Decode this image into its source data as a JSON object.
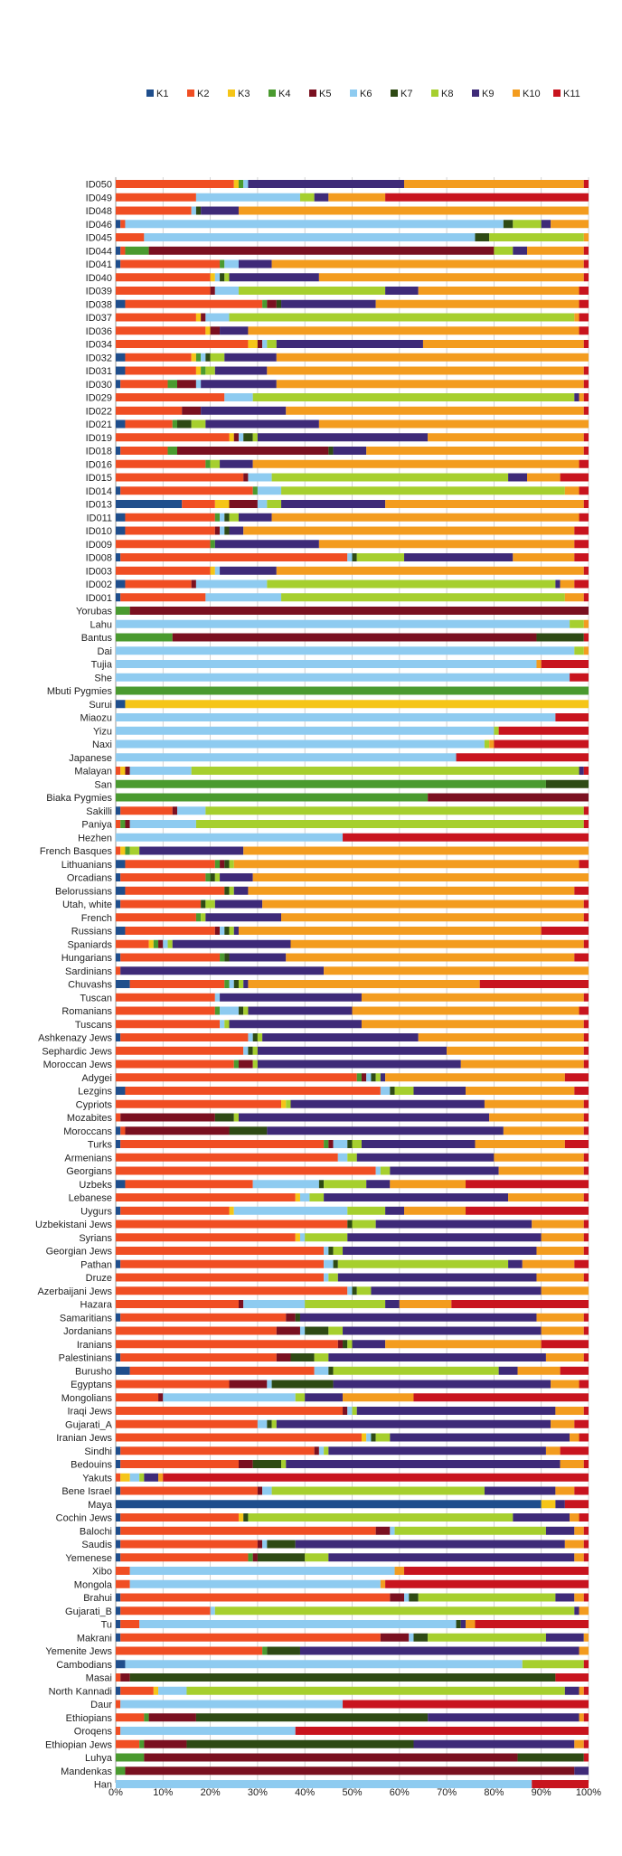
{
  "colors": [
    "#1f4e8c",
    "#f04e23",
    "#f5c518",
    "#4a9a2f",
    "#7a1020",
    "#8ecbf0",
    "#2e4a14",
    "#a6cf2e",
    "#3e2a78",
    "#f39c1f",
    "#c8141e"
  ],
  "chart_data": {
    "type": "bar",
    "orientation": "horizontal",
    "stacked": true,
    "percent": true,
    "xlim": [
      0,
      100
    ],
    "x_ticks": [
      "0%",
      "10%",
      "20%",
      "30%",
      "40%",
      "50%",
      "60%",
      "70%",
      "80%",
      "90%",
      "100%"
    ],
    "grid": true,
    "legend_position": "top",
    "series_names": [
      "K1",
      "K2",
      "K3",
      "K4",
      "K5",
      "K6",
      "K7",
      "K8",
      "K9",
      "K10",
      "K11"
    ],
    "categories": [
      "ID050",
      "ID049",
      "ID048",
      "ID046",
      "ID045",
      "ID044",
      "ID041",
      "ID040",
      "ID039",
      "ID038",
      "ID037",
      "ID036",
      "ID034",
      "ID032",
      "ID031",
      "ID030",
      "ID029",
      "ID022",
      "ID021",
      "ID019",
      "ID018",
      "ID016",
      "ID015",
      "ID014",
      "ID013",
      "ID011",
      "ID010",
      "ID009",
      "ID008",
      "ID003",
      "ID002",
      "ID001",
      "Yorubas",
      "Lahu",
      "Bantus",
      "Dai",
      "Tujia",
      "She",
      "Mbuti Pygmies",
      "Surui",
      "Miaozu",
      "Yizu",
      "Naxi",
      "Japanese",
      "Malayan",
      "San",
      "Biaka Pygmies",
      "Sakilli",
      "Paniya",
      "Hezhen",
      "French Basques",
      "Lithuanians",
      "Orcadians",
      "Belorussians",
      "Utah, white",
      "French",
      "Russians",
      "Spaniards",
      "Hungarians",
      "Sardinians",
      "Chuvashs",
      "Tuscan",
      "Romanians",
      "Tuscans",
      "Ashkenazy Jews",
      "Sephardic Jews",
      "Moroccan Jews",
      "Adygei",
      "Lezgins",
      "Cypriots",
      "Mozabites",
      "Moroccans",
      "Turks",
      "Armenians",
      "Georgians",
      "Uzbeks",
      "Lebanese",
      "Uygurs",
      "Uzbekistani Jews",
      "Syrians",
      "Georgian Jews",
      "Pathan",
      "Druze",
      "Azerbaijani Jews",
      "Hazara",
      "Samaritians",
      "Jordanians",
      "Iranians",
      "Palestinians",
      "Burusho",
      "Egyptans",
      "Mongolians",
      "Iraqi Jews",
      "Gujarati_A",
      "Iranian Jews",
      "Sindhi",
      "Bedouins",
      "Yakuts",
      "Bene Israel",
      "Maya",
      "Cochin Jews",
      "Balochi",
      "Saudis",
      "Yemenese",
      "Xibo",
      "Mongola",
      "Brahui",
      "Gujarati_B",
      "Tu",
      "Makrani",
      "Yemenite Jews",
      "Cambodians",
      "Masai",
      "North Kannadi",
      "Daur",
      "Ethiopians",
      "Oroqens",
      "Ethiopian Jews",
      "Luhya",
      "Mandenkas",
      "Han"
    ],
    "values": [
      [
        0,
        25,
        1,
        1,
        0,
        1,
        0,
        0,
        33,
        38,
        1
      ],
      [
        0,
        17,
        0,
        0,
        0,
        22,
        0,
        3,
        3,
        12,
        43
      ],
      [
        0,
        16,
        0,
        0,
        0,
        1,
        1,
        0,
        8,
        74,
        0
      ],
      [
        1,
        1,
        0,
        0,
        0,
        80,
        2,
        6,
        2,
        8,
        0
      ],
      [
        0,
        6,
        0,
        0,
        0,
        70,
        3,
        20,
        0,
        1,
        0
      ],
      [
        1,
        1,
        0,
        5,
        73,
        0,
        0,
        4,
        3,
        12,
        1
      ],
      [
        1,
        21,
        0,
        1,
        0,
        3,
        0,
        0,
        7,
        66,
        1
      ],
      [
        0,
        20,
        1,
        0,
        0,
        1,
        1,
        1,
        19,
        56,
        1
      ],
      [
        0,
        20,
        0,
        0,
        1,
        5,
        0,
        31,
        7,
        34,
        2
      ],
      [
        2,
        29,
        0,
        1,
        2,
        0,
        1,
        0,
        20,
        43,
        2
      ],
      [
        0,
        17,
        1,
        0,
        1,
        5,
        0,
        73,
        0,
        1,
        2
      ],
      [
        0,
        19,
        1,
        0,
        2,
        0,
        0,
        0,
        6,
        70,
        2
      ],
      [
        0,
        28,
        2,
        0,
        1,
        1,
        0,
        2,
        31,
        34,
        1
      ],
      [
        2,
        14,
        1,
        1,
        0,
        1,
        1,
        3,
        11,
        66,
        0
      ],
      [
        2,
        15,
        1,
        1,
        0,
        0,
        0,
        2,
        11,
        67,
        1
      ],
      [
        1,
        10,
        0,
        2,
        4,
        1,
        0,
        0,
        16,
        65,
        1
      ],
      [
        0,
        23,
        0,
        0,
        0,
        6,
        0,
        68,
        1,
        1,
        1
      ],
      [
        0,
        14,
        0,
        0,
        4,
        0,
        0,
        0,
        18,
        63,
        1
      ],
      [
        2,
        10,
        0,
        1,
        0,
        0,
        3,
        3,
        24,
        57,
        0
      ],
      [
        0,
        24,
        1,
        0,
        1,
        1,
        2,
        1,
        36,
        33,
        1
      ],
      [
        1,
        10,
        0,
        2,
        32,
        0,
        1,
        0,
        7,
        46,
        1
      ],
      [
        0,
        19,
        0,
        1,
        0,
        0,
        0,
        2,
        7,
        69,
        2
      ],
      [
        0,
        27,
        0,
        0,
        1,
        5,
        0,
        50,
        4,
        7,
        6
      ],
      [
        1,
        28,
        0,
        1,
        0,
        5,
        0,
        60,
        0,
        3,
        2
      ],
      [
        14,
        7,
        3,
        0,
        6,
        2,
        0,
        3,
        22,
        42,
        1
      ],
      [
        2,
        19,
        0,
        1,
        0,
        1,
        1,
        2,
        7,
        65,
        2
      ],
      [
        2,
        19,
        0,
        0,
        1,
        1,
        1,
        0,
        3,
        70,
        3
      ],
      [
        0,
        20,
        0,
        1,
        0,
        0,
        0,
        0,
        22,
        54,
        3
      ],
      [
        1,
        48,
        0,
        0,
        0,
        1,
        1,
        10,
        23,
        13,
        3
      ],
      [
        0,
        20,
        1,
        0,
        0,
        1,
        0,
        0,
        12,
        65,
        1
      ],
      [
        2,
        14,
        0,
        0,
        1,
        15,
        0,
        61,
        1,
        3,
        3
      ],
      [
        1,
        18,
        0,
        0,
        0,
        16,
        0,
        60,
        0,
        4,
        1
      ],
      [
        0,
        0,
        0,
        3,
        97,
        0,
        0,
        0,
        0,
        0,
        0
      ],
      [
        0,
        0,
        0,
        0,
        0,
        96,
        0,
        3,
        0,
        1,
        0
      ],
      [
        0,
        0,
        0,
        12,
        77,
        0,
        10,
        0,
        0,
        0,
        1
      ],
      [
        0,
        0,
        0,
        0,
        0,
        97,
        0,
        2,
        0,
        1,
        0
      ],
      [
        0,
        0,
        0,
        0,
        0,
        89,
        0,
        0,
        0,
        1,
        10
      ],
      [
        0,
        0,
        0,
        0,
        0,
        96,
        0,
        0,
        0,
        0,
        4
      ],
      [
        0,
        0,
        0,
        100,
        0,
        0,
        0,
        0,
        0,
        0,
        0
      ],
      [
        2,
        0,
        98,
        0,
        0,
        0,
        0,
        0,
        0,
        0,
        0
      ],
      [
        0,
        0,
        0,
        0,
        0,
        93,
        0,
        0,
        0,
        0,
        7
      ],
      [
        0,
        0,
        0,
        0,
        0,
        80,
        0,
        1,
        0,
        0,
        19
      ],
      [
        0,
        0,
        0,
        0,
        0,
        78,
        0,
        1,
        0,
        1,
        20
      ],
      [
        0,
        0,
        0,
        0,
        0,
        72,
        0,
        0,
        0,
        0,
        28
      ],
      [
        0,
        1,
        1,
        0,
        1,
        13,
        0,
        82,
        1,
        0,
        1
      ],
      [
        0,
        0,
        0,
        91,
        0,
        0,
        9,
        0,
        0,
        0,
        0
      ],
      [
        0,
        0,
        0,
        66,
        34,
        0,
        0,
        0,
        0,
        0,
        0
      ],
      [
        1,
        11,
        0,
        0,
        1,
        6,
        0,
        80,
        0,
        0,
        1
      ],
      [
        0,
        1,
        0,
        1,
        1,
        14,
        0,
        82,
        0,
        0,
        1
      ],
      [
        0,
        0,
        0,
        0,
        0,
        48,
        0,
        0,
        0,
        0,
        52
      ],
      [
        0,
        1,
        1,
        1,
        0,
        0,
        0,
        2,
        22,
        73,
        0
      ],
      [
        2,
        19,
        0,
        1,
        1,
        0,
        1,
        1,
        0,
        73,
        2
      ],
      [
        1,
        18,
        0,
        1,
        0,
        0,
        1,
        1,
        7,
        71,
        0
      ],
      [
        2,
        21,
        0,
        0,
        0,
        0,
        1,
        1,
        3,
        69,
        3
      ],
      [
        1,
        17,
        0,
        0,
        0,
        0,
        1,
        2,
        10,
        68,
        1
      ],
      [
        0,
        17,
        0,
        1,
        0,
        0,
        0,
        1,
        16,
        64,
        1
      ],
      [
        2,
        19,
        0,
        0,
        1,
        1,
        1,
        1,
        1,
        64,
        10
      ],
      [
        0,
        7,
        1,
        1,
        1,
        1,
        0,
        1,
        25,
        62,
        1
      ],
      [
        1,
        21,
        0,
        1,
        0,
        0,
        1,
        0,
        12,
        61,
        3
      ],
      [
        0,
        1,
        0,
        0,
        0,
        0,
        0,
        0,
        43,
        56,
        0
      ],
      [
        3,
        20,
        0,
        1,
        0,
        1,
        1,
        1,
        1,
        49,
        23
      ],
      [
        0,
        21,
        0,
        0,
        0,
        1,
        0,
        0,
        30,
        47,
        1
      ],
      [
        0,
        21,
        0,
        1,
        0,
        4,
        1,
        1,
        22,
        48,
        2
      ],
      [
        0,
        22,
        0,
        0,
        0,
        1,
        0,
        1,
        28,
        47,
        1
      ],
      [
        1,
        27,
        0,
        0,
        0,
        1,
        1,
        1,
        33,
        35,
        1
      ],
      [
        0,
        27,
        0,
        0,
        0,
        1,
        1,
        1,
        40,
        29,
        1
      ],
      [
        0,
        25,
        0,
        1,
        3,
        0,
        0,
        1,
        43,
        26,
        1
      ],
      [
        0,
        51,
        0,
        1,
        1,
        1,
        1,
        1,
        1,
        38,
        5
      ],
      [
        2,
        54,
        0,
        0,
        0,
        2,
        1,
        4,
        11,
        23,
        3
      ],
      [
        0,
        35,
        1,
        0,
        0,
        0,
        0,
        1,
        41,
        21,
        1
      ],
      [
        0,
        1,
        0,
        0,
        20,
        0,
        4,
        1,
        53,
        20,
        1
      ],
      [
        1,
        1,
        0,
        0,
        22,
        0,
        8,
        0,
        50,
        17,
        1
      ],
      [
        1,
        43,
        0,
        1,
        1,
        3,
        1,
        2,
        24,
        19,
        5
      ],
      [
        0,
        47,
        0,
        0,
        0,
        2,
        0,
        2,
        29,
        19,
        1
      ],
      [
        0,
        55,
        0,
        0,
        0,
        1,
        0,
        2,
        23,
        18,
        1
      ],
      [
        2,
        27,
        0,
        0,
        0,
        14,
        1,
        9,
        5,
        16,
        26
      ],
      [
        0,
        38,
        1,
        0,
        0,
        2,
        0,
        3,
        39,
        16,
        1
      ],
      [
        1,
        23,
        1,
        0,
        0,
        24,
        0,
        8,
        4,
        13,
        26
      ],
      [
        0,
        49,
        0,
        0,
        0,
        0,
        1,
        5,
        33,
        11,
        1
      ],
      [
        0,
        38,
        1,
        0,
        0,
        1,
        0,
        9,
        41,
        9,
        1
      ],
      [
        0,
        44,
        0,
        0,
        0,
        1,
        1,
        2,
        41,
        10,
        1
      ],
      [
        1,
        43,
        0,
        0,
        0,
        2,
        1,
        36,
        3,
        11,
        3
      ],
      [
        0,
        44,
        0,
        0,
        0,
        1,
        0,
        2,
        42,
        10,
        1
      ],
      [
        0,
        49,
        0,
        0,
        0,
        1,
        1,
        3,
        36,
        10,
        0
      ],
      [
        0,
        26,
        0,
        0,
        1,
        13,
        0,
        17,
        3,
        11,
        29
      ],
      [
        1,
        35,
        0,
        0,
        2,
        0,
        1,
        0,
        50,
        10,
        1
      ],
      [
        0,
        34,
        0,
        0,
        5,
        1,
        5,
        3,
        42,
        9,
        1
      ],
      [
        0,
        47,
        0,
        0,
        1,
        0,
        1,
        1,
        7,
        33,
        10
      ],
      [
        1,
        33,
        0,
        0,
        3,
        0,
        5,
        3,
        46,
        8,
        1
      ],
      [
        3,
        39,
        0,
        0,
        0,
        3,
        1,
        35,
        4,
        9,
        6
      ],
      [
        0,
        24,
        0,
        0,
        8,
        1,
        13,
        0,
        46,
        6,
        2
      ],
      [
        0,
        9,
        0,
        0,
        1,
        28,
        0,
        2,
        8,
        15,
        37
      ],
      [
        0,
        48,
        0,
        0,
        1,
        1,
        0,
        1,
        42,
        6,
        1
      ],
      [
        0,
        30,
        0,
        0,
        0,
        2,
        1,
        1,
        58,
        5,
        3
      ],
      [
        0,
        52,
        1,
        0,
        0,
        1,
        1,
        3,
        38,
        2,
        2
      ],
      [
        1,
        41,
        0,
        0,
        1,
        1,
        0,
        1,
        46,
        3,
        6
      ],
      [
        1,
        25,
        0,
        0,
        3,
        0,
        6,
        1,
        58,
        5,
        1
      ],
      [
        0,
        1,
        2,
        0,
        0,
        2,
        0,
        1,
        3,
        1,
        90
      ],
      [
        1,
        29,
        0,
        0,
        1,
        2,
        0,
        45,
        15,
        4,
        3
      ],
      [
        90,
        0,
        3,
        0,
        0,
        0,
        0,
        0,
        2,
        0,
        5
      ],
      [
        1,
        25,
        1,
        0,
        0,
        0,
        1,
        56,
        12,
        2,
        2
      ],
      [
        1,
        54,
        0,
        0,
        3,
        1,
        0,
        32,
        6,
        2,
        1
      ],
      [
        1,
        29,
        0,
        0,
        1,
        1,
        6,
        0,
        57,
        4,
        1
      ],
      [
        1,
        27,
        0,
        1,
        1,
        0,
        10,
        5,
        52,
        2,
        1
      ],
      [
        0,
        3,
        0,
        0,
        0,
        56,
        0,
        0,
        0,
        2,
        39
      ],
      [
        0,
        3,
        0,
        0,
        0,
        53,
        0,
        0,
        0,
        1,
        43
      ],
      [
        1,
        57,
        0,
        0,
        3,
        1,
        2,
        29,
        4,
        2,
        1
      ],
      [
        1,
        19,
        0,
        0,
        0,
        1,
        0,
        76,
        1,
        2,
        0
      ],
      [
        1,
        4,
        0,
        0,
        0,
        67,
        1,
        0,
        1,
        2,
        24
      ],
      [
        1,
        55,
        0,
        0,
        6,
        1,
        3,
        25,
        8,
        1,
        0
      ],
      [
        0,
        31,
        0,
        1,
        0,
        0,
        7,
        0,
        59,
        2,
        0
      ],
      [
        2,
        0,
        0,
        0,
        0,
        84,
        0,
        13,
        0,
        0,
        1
      ],
      [
        0,
        1,
        0,
        0,
        2,
        0,
        90,
        0,
        0,
        0,
        7
      ],
      [
        1,
        7,
        1,
        0,
        0,
        6,
        0,
        80,
        3,
        1,
        1
      ],
      [
        0,
        1,
        0,
        0,
        0,
        47,
        0,
        0,
        0,
        0,
        52
      ],
      [
        0,
        6,
        0,
        1,
        10,
        0,
        49,
        0,
        32,
        1,
        1
      ],
      [
        0,
        1,
        0,
        0,
        0,
        37,
        0,
        0,
        0,
        0,
        62
      ],
      [
        0,
        5,
        0,
        1,
        9,
        0,
        48,
        0,
        34,
        2,
        1
      ],
      [
        0,
        0,
        0,
        6,
        79,
        0,
        14,
        0,
        0,
        0,
        1
      ],
      [
        0,
        0,
        0,
        2,
        95,
        0,
        0,
        0,
        3,
        0,
        0
      ],
      [
        0,
        0,
        0,
        0,
        0,
        88,
        0,
        0,
        0,
        0,
        12
      ]
    ]
  }
}
